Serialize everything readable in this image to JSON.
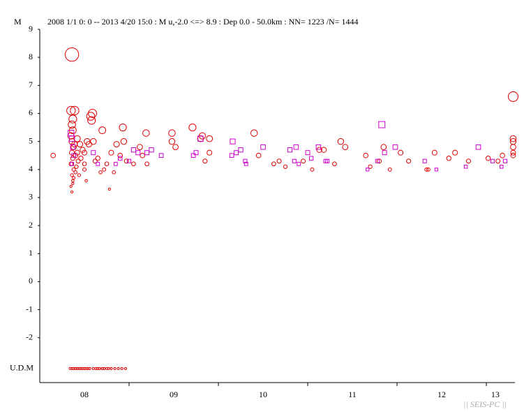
{
  "chart_data": {
    "type": "scatter",
    "y_label": "M",
    "title": "2008 1/1 0: 0 -- 2013 4/20 15:0  : M u,-2.0 <=> 8.9   :  Dep 0.0 - 50.0km :  NN= 1223 /N= 1444",
    "footer": "|| SEIS-PC ||",
    "udm_label": "U.D.M",
    "udm_level": -3.1,
    "xlim": [
      2008,
      2013.32
    ],
    "ylim": [
      -3.6,
      9
    ],
    "yticks": [
      9,
      8,
      7,
      6,
      5,
      4,
      3,
      2,
      1,
      0,
      -1,
      -2
    ],
    "xticks": [
      {
        "value": 2008.5,
        "label": "08"
      },
      {
        "value": 2009.5,
        "label": "09"
      },
      {
        "value": 2010.5,
        "label": "10"
      },
      {
        "value": 2011.5,
        "label": "11"
      },
      {
        "value": 2012.5,
        "label": "12"
      },
      {
        "value": 2013.1,
        "label": "13"
      }
    ],
    "year_boundaries": [
      2009,
      2010,
      2011,
      2012,
      2013
    ],
    "series": [
      {
        "marker": "circle",
        "color": "#e00000",
        "x": [
          2008.15,
          2008.36,
          2008.35,
          2008.39,
          2008.37,
          2008.36,
          2008.37,
          2008.35,
          2008.36,
          2008.38,
          2008.36,
          2008.37,
          2008.35,
          2008.38,
          2008.36,
          2008.37,
          2008.35,
          2008.36,
          2008.39,
          2008.4,
          2008.41,
          2008.37,
          2008.38,
          2008.4,
          2008.42,
          2008.43,
          2008.44,
          2008.42,
          2008.45,
          2008.48,
          2008.46,
          2008.5,
          2008.5,
          2008.5,
          2008.52,
          2008.57,
          2008.58,
          2008.59,
          2008.53,
          2008.55,
          2008.6,
          2008.62,
          2008.65,
          2008.7,
          2008.68,
          2008.72,
          2008.75,
          2008.8,
          2008.78,
          2008.83,
          2008.86,
          2008.9,
          2008.93,
          2008.94,
          2008.97,
          2009.05,
          2009.12,
          2009.15,
          2009.19,
          2009.2,
          2009.48,
          2009.48,
          2009.52,
          2009.71,
          2009.8,
          2009.82,
          2009.85,
          2009.9,
          2009.9,
          2010.4,
          2010.45,
          2010.62,
          2010.68,
          2010.75,
          2010.95,
          2011.05,
          2011.13,
          2011.18,
          2011.3,
          2011.37,
          2011.42,
          2011.65,
          2011.7,
          2011.8,
          2011.85,
          2011.92,
          2012.04,
          2012.13,
          2012.33,
          2012.35,
          2012.42,
          2012.58,
          2012.65,
          2012.8,
          2013.02,
          2013.13,
          2013.18,
          2013.3,
          2013.3,
          2013.3,
          2013.3,
          2013.3,
          2013.3
        ],
        "values": [
          4.5,
          8.1,
          6.1,
          6.1,
          5.8,
          5.6,
          5.4,
          5.2,
          5.0,
          4.8,
          4.6,
          4.4,
          4.2,
          4.0,
          3.8,
          3.6,
          3.4,
          3.2,
          4.9,
          4.5,
          4.1,
          3.5,
          3.7,
          3.9,
          5.1,
          4.3,
          3.8,
          4.6,
          4.9,
          4.7,
          4.4,
          4.6,
          4.2,
          4.0,
          3.6,
          5.9,
          5.75,
          6.0,
          5.0,
          4.9,
          5.0,
          4.3,
          4.4,
          5.4,
          3.9,
          4.0,
          4.2,
          4.6,
          3.3,
          3.9,
          4.9,
          4.5,
          5.5,
          5.0,
          4.3,
          4.2,
          4.8,
          4.5,
          5.3,
          4.2,
          5.3,
          5.0,
          4.8,
          5.5,
          5.1,
          5.2,
          4.3,
          5.1,
          4.6,
          5.3,
          4.5,
          4.2,
          4.3,
          4.1,
          4.3,
          4.0,
          4.7,
          4.7,
          4.2,
          5.0,
          4.8,
          4.5,
          4.1,
          4.3,
          4.8,
          4.0,
          4.6,
          4.3,
          4.0,
          4.0,
          4.6,
          4.4,
          4.6,
          4.3,
          4.4,
          4.3,
          4.5,
          6.6,
          5.1,
          5.0,
          4.8,
          4.6,
          4.5
        ]
      },
      {
        "marker": "square",
        "color": "#cc00cc",
        "x": [
          2008.35,
          2008.36,
          2008.37,
          2008.38,
          2008.36,
          2008.6,
          2008.65,
          2008.85,
          2008.9,
          2009.0,
          2009.05,
          2009.1,
          2009.2,
          2009.25,
          2009.36,
          2009.8,
          2009.72,
          2009.75,
          2010.16,
          2010.15,
          2010.2,
          2010.25,
          2010.3,
          2010.31,
          2010.5,
          2010.8,
          2010.85,
          2010.9,
          2010.87,
          2011.0,
          2011.04,
          2011.12,
          2011.2,
          2011.22,
          2011.67,
          2011.83,
          2011.78,
          2011.86,
          2011.98,
          2012.31,
          2012.44,
          2012.77,
          2012.91,
          2013.07,
          2013.17,
          2013.21
        ],
        "values": [
          5.3,
          5.1,
          4.8,
          4.5,
          4.2,
          4.6,
          4.2,
          4.2,
          4.4,
          4.3,
          4.7,
          4.6,
          4.6,
          4.7,
          4.5,
          5.1,
          4.5,
          4.6,
          5.0,
          4.5,
          4.6,
          4.7,
          4.3,
          4.2,
          4.8,
          4.7,
          4.3,
          4.2,
          4.8,
          4.6,
          4.4,
          4.8,
          4.3,
          4.3,
          4.0,
          5.6,
          4.3,
          4.6,
          4.8,
          4.3,
          4.0,
          4.1,
          4.8,
          4.3,
          4.1,
          4.3
        ]
      }
    ],
    "udm_x": [
      2008.34,
      2008.36,
      2008.38,
      2008.4,
      2008.42,
      2008.44,
      2008.46,
      2008.48,
      2008.5,
      2008.52,
      2008.54,
      2008.56,
      2008.6,
      2008.63,
      2008.65,
      2008.67,
      2008.7,
      2008.72,
      2008.75,
      2008.77,
      2008.8,
      2008.84,
      2008.88,
      2008.92,
      2008.96
    ]
  }
}
